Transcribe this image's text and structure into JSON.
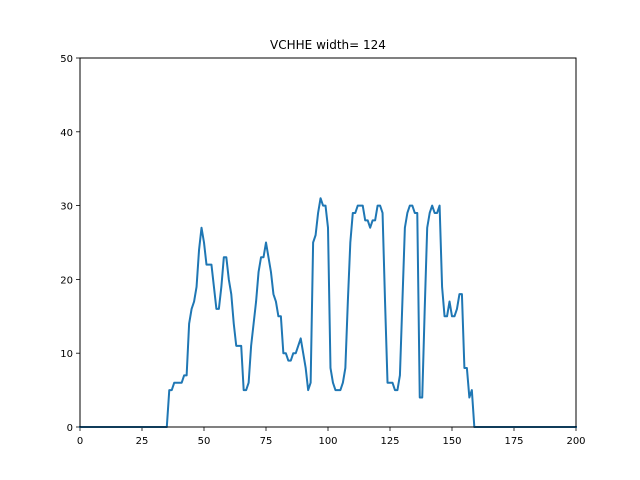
{
  "chart_data": {
    "type": "line",
    "title": "VCHHE width= 124",
    "xlabel": "",
    "ylabel": "",
    "xlim": [
      0,
      200
    ],
    "ylim": [
      0,
      50
    ],
    "x_ticks": [
      0,
      25,
      50,
      75,
      100,
      125,
      150,
      175,
      200
    ],
    "y_ticks": [
      0,
      10,
      20,
      30,
      40,
      50
    ],
    "grid": false,
    "line_color": "#1f77b4",
    "series": [
      {
        "x": [
          0,
          35,
          36,
          37,
          38,
          39,
          40,
          41,
          42,
          43,
          44,
          45,
          46,
          47,
          48,
          49,
          50,
          51,
          52,
          53,
          54,
          55,
          56,
          57,
          58,
          59,
          60,
          61,
          62,
          63,
          64,
          65,
          66,
          67,
          68,
          69,
          70,
          71,
          72,
          73,
          74,
          75,
          76,
          77,
          78,
          79,
          80,
          81,
          82,
          83,
          84,
          85,
          86,
          87,
          88,
          89,
          90,
          91,
          92,
          93,
          94,
          95,
          96,
          97,
          98,
          99,
          100,
          101,
          102,
          103,
          104,
          105,
          106,
          107,
          108,
          109,
          110,
          111,
          112,
          113,
          114,
          115,
          116,
          117,
          118,
          119,
          120,
          121,
          122,
          123,
          124,
          125,
          126,
          127,
          128,
          129,
          130,
          131,
          132,
          133,
          134,
          135,
          136,
          137,
          138,
          139,
          140,
          141,
          142,
          143,
          144,
          145,
          146,
          147,
          148,
          149,
          150,
          151,
          152,
          153,
          154,
          155,
          156,
          157,
          158,
          159,
          160,
          200
        ],
        "y": [
          0,
          0,
          5,
          5,
          6,
          6,
          6,
          6,
          7,
          7,
          14,
          16,
          17,
          19,
          24,
          27,
          25,
          22,
          22,
          22,
          19,
          16,
          16,
          19,
          23,
          23,
          20,
          18,
          14,
          11,
          11,
          11,
          5,
          5,
          6,
          11,
          14,
          17,
          21,
          23,
          23,
          25,
          23,
          21,
          18,
          17,
          15,
          15,
          10,
          10,
          9,
          9,
          10,
          10,
          11,
          12,
          10,
          8,
          5,
          6,
          25,
          26,
          29,
          31,
          30,
          30,
          27,
          8,
          6,
          5,
          5,
          5,
          6,
          8,
          17,
          25,
          29,
          29,
          30,
          30,
          30,
          28,
          28,
          27,
          28,
          28,
          30,
          30,
          29,
          17,
          6,
          6,
          6,
          5,
          5,
          7,
          17,
          27,
          29,
          30,
          30,
          29,
          29,
          4,
          4,
          16,
          27,
          29,
          30,
          29,
          29,
          30,
          19,
          15,
          15,
          17,
          15,
          15,
          16,
          18,
          18,
          8,
          8,
          4,
          5,
          0,
          0,
          0
        ]
      }
    ]
  }
}
